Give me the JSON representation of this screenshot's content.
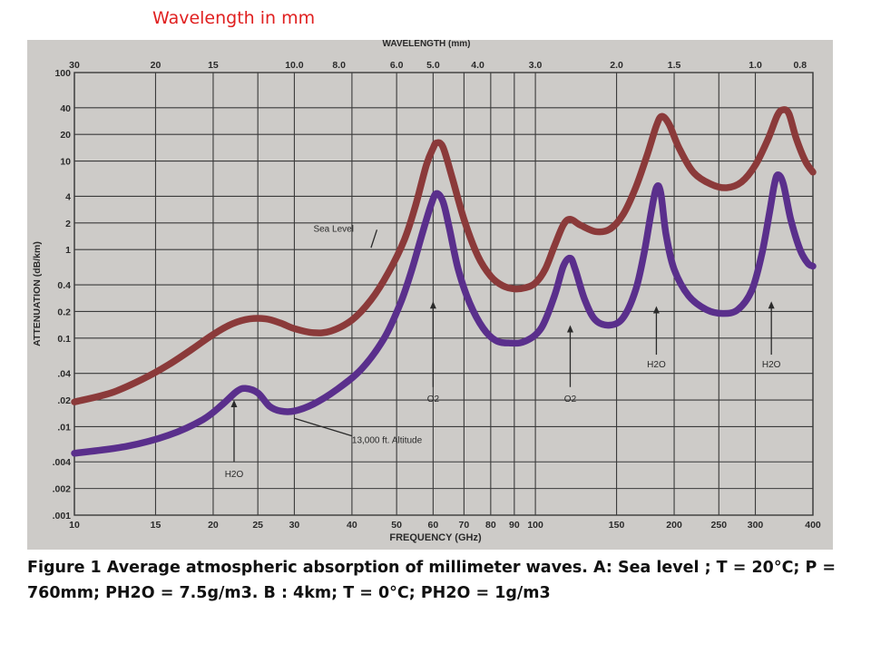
{
  "header": {
    "title": "Wavelength in mm",
    "title_color": "#e02020"
  },
  "caption": "Figure 1 Average atmospheric absorption of millimeter waves. A: Sea level ; T = 20°C; P = 760mm; PH2O = 7.5g/m3. B : 4km; T = 0°C; PH2O = 1g/m3",
  "chart_data": {
    "type": "line",
    "x_scale": "log",
    "y_scale": "log",
    "xlabel": "FREQUENCY (GHz)",
    "ylabel": "ATTENUATION (dB/km)",
    "top_axis_label": "WAVELENGTH (mm)",
    "xlim": [
      10,
      400
    ],
    "ylim": [
      0.001,
      100
    ],
    "grid": true,
    "x_ticks": [
      {
        "value": 10,
        "label": "10"
      },
      {
        "value": 15,
        "label": "15"
      },
      {
        "value": 20,
        "label": "20"
      },
      {
        "value": 25,
        "label": "25"
      },
      {
        "value": 30,
        "label": "30"
      },
      {
        "value": 40,
        "label": "40"
      },
      {
        "value": 50,
        "label": "50"
      },
      {
        "value": 60,
        "label": "60"
      },
      {
        "value": 70,
        "label": "70"
      },
      {
        "value": 80,
        "label": "80"
      },
      {
        "value": 90,
        "label": "90"
      },
      {
        "value": 100,
        "label": "100"
      },
      {
        "value": 150,
        "label": "150"
      },
      {
        "value": 200,
        "label": "200"
      },
      {
        "value": 250,
        "label": "250"
      },
      {
        "value": 300,
        "label": "300"
      },
      {
        "value": 400,
        "label": "400"
      }
    ],
    "top_ticks": [
      {
        "value": 30,
        "label": "30"
      },
      {
        "value": 20,
        "label": "20"
      },
      {
        "value": 15,
        "label": "15"
      },
      {
        "value": 10,
        "label": "10.0"
      },
      {
        "value": 8,
        "label": "8.0"
      },
      {
        "value": 6,
        "label": "6.0"
      },
      {
        "value": 5,
        "label": "5.0"
      },
      {
        "value": 4,
        "label": "4.0"
      },
      {
        "value": 3,
        "label": "3.0"
      },
      {
        "value": 2,
        "label": "2.0"
      },
      {
        "value": 1.5,
        "label": "1.5"
      },
      {
        "value": 1,
        "label": "1.0"
      },
      {
        "value": 0.8,
        "label": "0.8"
      }
    ],
    "y_ticks": [
      {
        "value": 100,
        "label": "100"
      },
      {
        "value": 40,
        "label": "40"
      },
      {
        "value": 20,
        "label": "20"
      },
      {
        "value": 10,
        "label": "10"
      },
      {
        "value": 4,
        "label": "4"
      },
      {
        "value": 2,
        "label": "2"
      },
      {
        "value": 1,
        "label": "1"
      },
      {
        "value": 0.4,
        "label": "0.4"
      },
      {
        "value": 0.2,
        "label": "0.2"
      },
      {
        "value": 0.1,
        "label": "0.1"
      },
      {
        "value": 0.04,
        "label": ".04"
      },
      {
        "value": 0.02,
        "label": ".02"
      },
      {
        "value": 0.01,
        "label": ".01"
      },
      {
        "value": 0.004,
        "label": ".004"
      },
      {
        "value": 0.002,
        "label": ".002"
      },
      {
        "value": 0.001,
        "label": ".001"
      }
    ],
    "series": [
      {
        "name": "Sea Level",
        "color": "#8b3a3a",
        "points": [
          [
            10,
            0.019
          ],
          [
            12,
            0.024
          ],
          [
            14,
            0.034
          ],
          [
            16,
            0.05
          ],
          [
            18,
            0.075
          ],
          [
            20,
            0.11
          ],
          [
            22,
            0.145
          ],
          [
            24,
            0.165
          ],
          [
            26,
            0.165
          ],
          [
            28,
            0.148
          ],
          [
            30,
            0.128
          ],
          [
            33,
            0.115
          ],
          [
            36,
            0.12
          ],
          [
            40,
            0.16
          ],
          [
            44,
            0.27
          ],
          [
            48,
            0.55
          ],
          [
            52,
            1.3
          ],
          [
            55,
            3.2
          ],
          [
            58,
            9.0
          ],
          [
            60,
            14.0
          ],
          [
            61,
            16.0
          ],
          [
            63,
            14.5
          ],
          [
            66,
            6.5
          ],
          [
            70,
            2.2
          ],
          [
            75,
            0.85
          ],
          [
            80,
            0.5
          ],
          [
            85,
            0.39
          ],
          [
            90,
            0.36
          ],
          [
            95,
            0.37
          ],
          [
            100,
            0.42
          ],
          [
            105,
            0.6
          ],
          [
            110,
            1.1
          ],
          [
            115,
            1.9
          ],
          [
            119,
            2.2
          ],
          [
            125,
            1.9
          ],
          [
            135,
            1.6
          ],
          [
            145,
            1.7
          ],
          [
            155,
            2.5
          ],
          [
            165,
            5.0
          ],
          [
            175,
            12.0
          ],
          [
            183,
            25.0
          ],
          [
            188,
            32.0
          ],
          [
            195,
            26.0
          ],
          [
            205,
            14.0
          ],
          [
            220,
            7.5
          ],
          [
            240,
            5.5
          ],
          [
            260,
            5.0
          ],
          [
            280,
            5.8
          ],
          [
            300,
            9.0
          ],
          [
            320,
            18.0
          ],
          [
            335,
            33.0
          ],
          [
            345,
            38.0
          ],
          [
            355,
            34.0
          ],
          [
            368,
            18.0
          ],
          [
            385,
            10.0
          ],
          [
            400,
            7.5
          ]
        ]
      },
      {
        "name": "13,000 ft. Altitude",
        "color": "#5a2f8c",
        "points": [
          [
            10,
            0.005
          ],
          [
            13,
            0.006
          ],
          [
            16,
            0.008
          ],
          [
            19,
            0.012
          ],
          [
            21,
            0.018
          ],
          [
            22.5,
            0.025
          ],
          [
            23.5,
            0.027
          ],
          [
            25,
            0.024
          ],
          [
            26.5,
            0.017
          ],
          [
            28,
            0.015
          ],
          [
            30,
            0.015
          ],
          [
            33,
            0.018
          ],
          [
            37,
            0.026
          ],
          [
            42,
            0.045
          ],
          [
            47,
            0.1
          ],
          [
            51,
            0.25
          ],
          [
            54,
            0.6
          ],
          [
            57,
            1.6
          ],
          [
            59.5,
            3.3
          ],
          [
            61,
            4.3
          ],
          [
            63,
            3.5
          ],
          [
            65,
            1.8
          ],
          [
            68,
            0.6
          ],
          [
            72,
            0.25
          ],
          [
            77,
            0.13
          ],
          [
            82,
            0.094
          ],
          [
            88,
            0.088
          ],
          [
            95,
            0.092
          ],
          [
            103,
            0.13
          ],
          [
            110,
            0.3
          ],
          [
            115,
            0.65
          ],
          [
            119,
            0.8
          ],
          [
            122,
            0.6
          ],
          [
            128,
            0.27
          ],
          [
            135,
            0.16
          ],
          [
            145,
            0.14
          ],
          [
            155,
            0.17
          ],
          [
            165,
            0.35
          ],
          [
            172,
            0.9
          ],
          [
            178,
            2.5
          ],
          [
            183,
            5.0
          ],
          [
            187,
            4.4
          ],
          [
            192,
            1.5
          ],
          [
            200,
            0.6
          ],
          [
            215,
            0.3
          ],
          [
            235,
            0.21
          ],
          [
            255,
            0.19
          ],
          [
            275,
            0.21
          ],
          [
            295,
            0.35
          ],
          [
            310,
            0.9
          ],
          [
            322,
            2.6
          ],
          [
            330,
            5.5
          ],
          [
            336,
            7.0
          ],
          [
            345,
            5.5
          ],
          [
            358,
            2.2
          ],
          [
            375,
            1.0
          ],
          [
            390,
            0.7
          ],
          [
            400,
            0.65
          ]
        ]
      }
    ],
    "annotations": [
      {
        "text": "Sea Level",
        "x": 33,
        "y": 1.6
      },
      {
        "text": "13,000 ft. Altitude",
        "x": 40,
        "y": 0.0065
      },
      {
        "text": "H2O",
        "arrow_x": 22.2,
        "x": 22.2,
        "y": 0.0027
      },
      {
        "text": "O2",
        "arrow_x": 60,
        "x": 60,
        "y": 0.019
      },
      {
        "text": "O2",
        "arrow_x": 119,
        "x": 119,
        "y": 0.019
      },
      {
        "text": "H2O",
        "arrow_x": 183,
        "x": 183,
        "y": 0.047
      },
      {
        "text": "H2O",
        "arrow_x": 325,
        "x": 325,
        "y": 0.047
      }
    ]
  }
}
